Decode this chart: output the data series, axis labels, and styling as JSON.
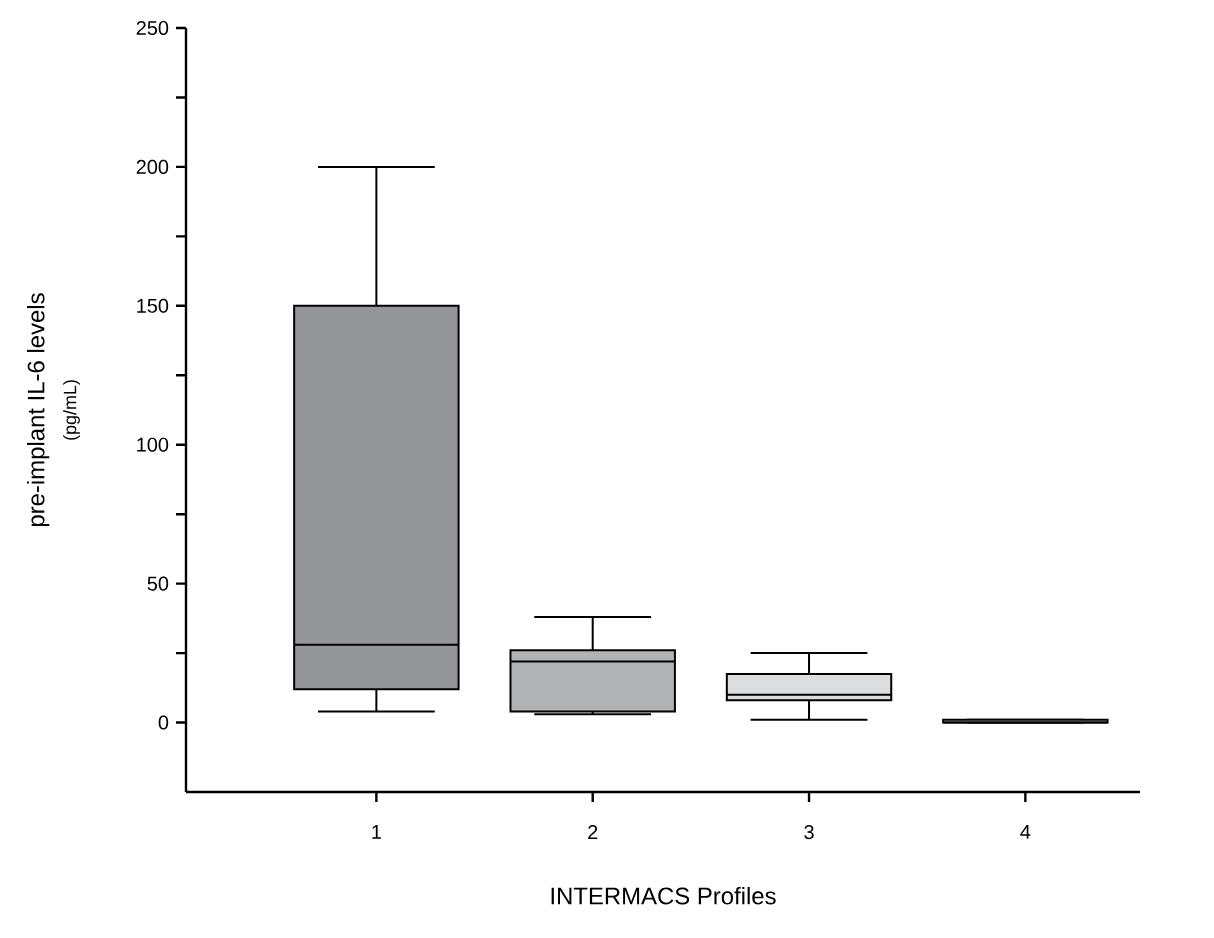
{
  "chart_data": {
    "type": "box",
    "categories": [
      "1",
      "2",
      "3",
      "4"
    ],
    "xlabel": "INTERMACS Profiles",
    "ylabel": "pre-implant IL-6 levels",
    "annotations": [
      "(pg/mL)"
    ],
    "boxes": [
      {
        "low": 4,
        "q1": 12,
        "median": 28,
        "q3": 150,
        "high": 200
      },
      {
        "low": 3,
        "q1": 4,
        "median": 22,
        "q3": 26,
        "high": 38
      },
      {
        "low": 1,
        "q1": 8,
        "median": 10,
        "q3": 17.5,
        "high": 25
      },
      {
        "low": 0,
        "q1": 0,
        "median": 0,
        "q3": 1,
        "high": 1
      }
    ],
    "colors": [
      "#939598",
      "#b2b3b5",
      "#dcdddf",
      "#dcdddf"
    ],
    "ylim": [
      -25,
      250
    ],
    "yticks": [
      0,
      {
        "value": 25,
        "label": null
      },
      50,
      {
        "value": 75,
        "label": null
      },
      100,
      {
        "value": 125,
        "label": null
      },
      150,
      {
        "value": 175,
        "label": null
      },
      200,
      {
        "value": 225,
        "label": null
      },
      250
    ]
  }
}
